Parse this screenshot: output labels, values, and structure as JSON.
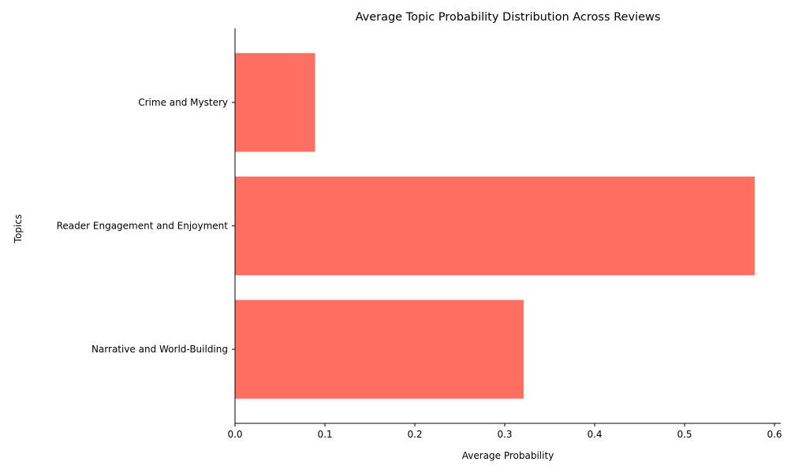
{
  "chart_data": {
    "type": "bar",
    "orientation": "horizontal",
    "title": "Average Topic Probability Distribution Across Reviews",
    "xlabel": "Average Probability",
    "ylabel": "Topics",
    "categories": [
      "Narrative and World-Building",
      "Reader Engagement and Enjoyment",
      "Crime and Mystery"
    ],
    "values": [
      0.321,
      0.578,
      0.089
    ],
    "xlim": [
      0,
      0.607
    ],
    "xticks": [
      0.0,
      0.1,
      0.2,
      0.3,
      0.4,
      0.5,
      0.6
    ],
    "xtick_labels": [
      "0.0",
      "0.1",
      "0.2",
      "0.3",
      "0.4",
      "0.5",
      "0.6"
    ],
    "bar_color": "#ff6f61",
    "grid": false,
    "legend": "none"
  }
}
